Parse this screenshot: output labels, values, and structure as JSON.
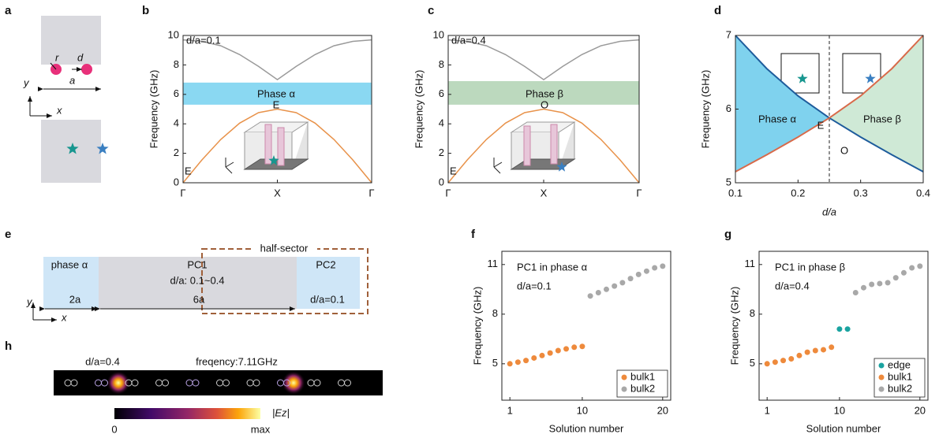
{
  "chart_data": [
    {
      "type": "line",
      "panel": "b",
      "ylabel": "Frequency (GHz)",
      "x": [
        0,
        0.1,
        0.2,
        0.3,
        0.4,
        0.5,
        0.6,
        0.7,
        0.8,
        0.9,
        1
      ],
      "xlim": [
        0,
        1
      ],
      "xticks": [
        {
          "value": 0,
          "label": "Γ"
        },
        {
          "value": 0.5,
          "label": "X"
        },
        {
          "value": 1,
          "label": "Γ"
        }
      ],
      "ylim": [
        0,
        10
      ],
      "yticks": [
        0,
        2,
        4,
        6,
        8,
        10
      ],
      "series": [
        {
          "color": "#9a9a9a",
          "values": [
            9.7,
            9.6,
            9.3,
            8.7,
            7.9,
            7.0,
            7.9,
            8.7,
            9.3,
            9.6,
            9.7
          ]
        },
        {
          "color": "#e8924a",
          "values": [
            0,
            1.55,
            2.94,
            4.05,
            4.76,
            5.0,
            4.76,
            4.05,
            2.94,
            1.55,
            0
          ]
        }
      ],
      "band": [
        5.3,
        6.8
      ],
      "band_color": "#8ad8f2",
      "annotations": [
        "d/a=0.1",
        "Phase α",
        "E",
        "E"
      ]
    },
    {
      "type": "line",
      "panel": "c",
      "ylabel": "Frequency (GHz)",
      "x": [
        0,
        0.1,
        0.2,
        0.3,
        0.4,
        0.5,
        0.6,
        0.7,
        0.8,
        0.9,
        1
      ],
      "xlim": [
        0,
        1
      ],
      "xticks": [
        {
          "value": 0,
          "label": "Γ"
        },
        {
          "value": 0.5,
          "label": "X"
        },
        {
          "value": 1,
          "label": "Γ"
        }
      ],
      "ylim": [
        0,
        10
      ],
      "yticks": [
        0,
        2,
        4,
        6,
        8,
        10
      ],
      "series": [
        {
          "color": "#9a9a9a",
          "values": [
            9.7,
            9.6,
            9.3,
            8.7,
            7.9,
            7.0,
            7.9,
            8.7,
            9.3,
            9.6,
            9.7
          ]
        },
        {
          "color": "#e8924a",
          "values": [
            0,
            1.55,
            2.94,
            4.05,
            4.76,
            5.0,
            4.76,
            4.05,
            2.94,
            1.55,
            0
          ]
        }
      ],
      "band": [
        5.3,
        6.9
      ],
      "band_color": "#bcd9be",
      "annotations": [
        "d/a=0.4",
        "Phase β",
        "O",
        "E"
      ]
    },
    {
      "type": "line",
      "panel": "d",
      "ylabel": "Frequency (GHz)",
      "xlabel": "d/a",
      "x": [
        0.1,
        0.15,
        0.2,
        0.25,
        0.3,
        0.35,
        0.4
      ],
      "xlim": [
        0.1,
        0.4
      ],
      "xticks": [
        0.1,
        0.2,
        0.3,
        0.4
      ],
      "ylim": [
        5,
        7
      ],
      "yticks": [
        5,
        6,
        7
      ],
      "series": [
        {
          "color": "#1e5c9c",
          "values": [
            7.0,
            6.55,
            6.18,
            5.88,
            5.62,
            5.38,
            5.15
          ]
        },
        {
          "color": "#d86a4a",
          "values": [
            5.15,
            5.38,
            5.62,
            5.88,
            6.18,
            6.55,
            7.0
          ]
        }
      ],
      "fill_colors": [
        "#7fd2ee",
        "#cfe9d6"
      ],
      "annotations": [
        "Phase α",
        "Phase β",
        "E",
        "O"
      ]
    },
    {
      "type": "scatter",
      "panel": "f",
      "ylabel": "Frequency (GHz)",
      "xlabel": "Solution number",
      "xlim": [
        0,
        21
      ],
      "xticks": [
        1,
        10,
        20
      ],
      "ylim": [
        2.8,
        11.8
      ],
      "yticks": [
        5,
        8,
        11
      ],
      "legend": "lower right",
      "series": [
        {
          "name": "bulk1",
          "color": "#ee8a3c",
          "x": [
            1,
            2,
            3,
            4,
            5,
            6,
            7,
            8,
            9,
            10
          ],
          "values": [
            5.0,
            5.1,
            5.2,
            5.35,
            5.5,
            5.65,
            5.8,
            5.9,
            6.0,
            6.05
          ]
        },
        {
          "name": "bulk2",
          "color": "#a8a8a8",
          "x": [
            11,
            12,
            13,
            14,
            15,
            16,
            17,
            18,
            19,
            20
          ],
          "values": [
            9.1,
            9.3,
            9.5,
            9.7,
            9.9,
            10.15,
            10.4,
            10.6,
            10.8,
            10.9
          ]
        }
      ],
      "annotations": [
        "PC1 in phase α",
        "d/a=0.1"
      ]
    },
    {
      "type": "scatter",
      "panel": "g",
      "ylabel": "Frequency (GHz)",
      "xlabel": "Solution number",
      "xlim": [
        0,
        21
      ],
      "xticks": [
        1,
        10,
        20
      ],
      "ylim": [
        2.8,
        11.8
      ],
      "yticks": [
        5,
        8,
        11
      ],
      "legend": "lower right",
      "series": [
        {
          "name": "edge",
          "color": "#1aa3a0",
          "x": [
            10,
            11
          ],
          "values": [
            7.1,
            7.1
          ]
        },
        {
          "name": "bulk1",
          "color": "#ee8a3c",
          "x": [
            1,
            2,
            3,
            4,
            5,
            6,
            7,
            8,
            9
          ],
          "values": [
            5.0,
            5.1,
            5.2,
            5.3,
            5.5,
            5.7,
            5.8,
            5.85,
            6.0
          ]
        },
        {
          "name": "bulk2",
          "color": "#a8a8a8",
          "x": [
            12,
            13,
            14,
            15,
            16,
            17,
            18,
            19,
            20
          ],
          "values": [
            9.3,
            9.6,
            9.8,
            9.85,
            9.9,
            10.2,
            10.5,
            10.8,
            10.9
          ]
        }
      ],
      "annotations": [
        "PC1 in phase β",
        "d/a=0.4"
      ]
    }
  ],
  "panel_a": {
    "label": "a",
    "r": "r",
    "d": "d",
    "a": "a",
    "y": "y",
    "x": "x"
  },
  "panel_e": {
    "label": "e",
    "sector": "half-sector",
    "phase": "phase α",
    "pc1": "PC1",
    "range": "d/a: 0.1~0.4",
    "pc2": "PC2",
    "w1": "2a",
    "w2": "6a",
    "pc2_da": "d/a=0.1",
    "y": "y",
    "x": "x"
  },
  "panel_h": {
    "label": "h",
    "da": "d/a=0.4",
    "freq": "freqency:7.11GHz",
    "cmin": "0",
    "cmax": "max",
    "field": "|Ez|"
  }
}
